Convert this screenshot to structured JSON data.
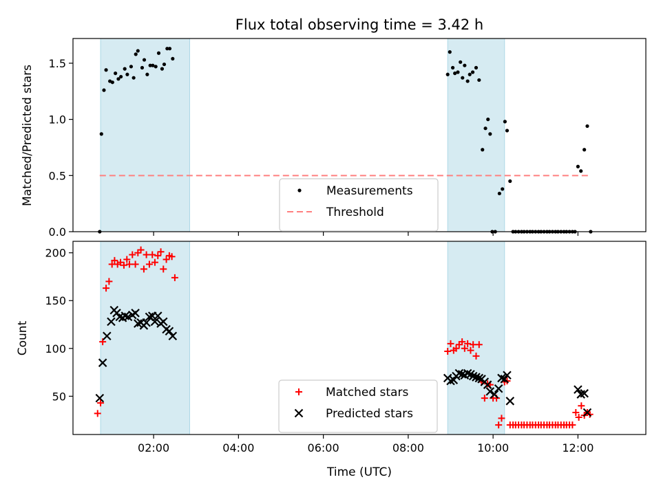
{
  "title": "Flux total observing time = 3.42 h",
  "colors": {
    "shade": "#add8e6",
    "measurement": "#000000",
    "threshold": "#ff7f7f",
    "matched": "#ff0000",
    "predicted": "#000000"
  },
  "chart_data": [
    {
      "type": "scatter",
      "ylabel": "Matched/Predicted stars",
      "xlim_hours": [
        0.1,
        13.6
      ],
      "ylim": [
        0,
        1.72
      ],
      "yticks": [
        {
          "v": 0.0,
          "label": "0.0"
        },
        {
          "v": 0.5,
          "label": "0.5"
        },
        {
          "v": 1.0,
          "label": "1.0"
        },
        {
          "v": 1.5,
          "label": "1.5"
        }
      ],
      "shaded_ranges_hours": [
        [
          0.75,
          2.85
        ],
        [
          8.93,
          10.27
        ]
      ],
      "legend": {
        "placement": "lower center",
        "entries": [
          "Measurements",
          "Threshold"
        ]
      },
      "series": [
        {
          "name": "Measurements",
          "marker": "dot",
          "points": [
            [
              0.73,
              0.0
            ],
            [
              0.77,
              0.87
            ],
            [
              0.83,
              1.26
            ],
            [
              0.88,
              1.44
            ],
            [
              0.97,
              1.34
            ],
            [
              1.03,
              1.33
            ],
            [
              1.1,
              1.41
            ],
            [
              1.17,
              1.36
            ],
            [
              1.23,
              1.38
            ],
            [
              1.32,
              1.45
            ],
            [
              1.38,
              1.4
            ],
            [
              1.47,
              1.47
            ],
            [
              1.53,
              1.37
            ],
            [
              1.58,
              1.58
            ],
            [
              1.63,
              1.61
            ],
            [
              1.73,
              1.46
            ],
            [
              1.78,
              1.53
            ],
            [
              1.85,
              1.4
            ],
            [
              1.92,
              1.48
            ],
            [
              1.98,
              1.48
            ],
            [
              2.05,
              1.47
            ],
            [
              2.12,
              1.59
            ],
            [
              2.2,
              1.45
            ],
            [
              2.25,
              1.49
            ],
            [
              2.32,
              1.63
            ],
            [
              2.38,
              1.63
            ],
            [
              2.45,
              1.54
            ],
            [
              8.93,
              1.4
            ],
            [
              8.98,
              1.6
            ],
            [
              9.05,
              1.46
            ],
            [
              9.1,
              1.41
            ],
            [
              9.17,
              1.42
            ],
            [
              9.23,
              1.51
            ],
            [
              9.28,
              1.37
            ],
            [
              9.33,
              1.48
            ],
            [
              9.4,
              1.34
            ],
            [
              9.45,
              1.4
            ],
            [
              9.52,
              1.42
            ],
            [
              9.6,
              1.46
            ],
            [
              9.67,
              1.35
            ],
            [
              9.75,
              0.73
            ],
            [
              9.82,
              0.92
            ],
            [
              9.88,
              1.0
            ],
            [
              9.93,
              0.87
            ],
            [
              9.98,
              0.0
            ],
            [
              10.05,
              0.0
            ],
            [
              10.15,
              0.34
            ],
            [
              10.22,
              0.38
            ],
            [
              10.28,
              0.98
            ],
            [
              10.33,
              0.9
            ],
            [
              10.4,
              0.45
            ],
            [
              10.47,
              0.0
            ],
            [
              10.53,
              0.0
            ],
            [
              10.6,
              0.0
            ],
            [
              10.67,
              0.0
            ],
            [
              10.73,
              0.0
            ],
            [
              10.8,
              0.0
            ],
            [
              10.87,
              0.0
            ],
            [
              10.93,
              0.0
            ],
            [
              11.0,
              0.0
            ],
            [
              11.07,
              0.0
            ],
            [
              11.13,
              0.0
            ],
            [
              11.2,
              0.0
            ],
            [
              11.27,
              0.0
            ],
            [
              11.33,
              0.0
            ],
            [
              11.4,
              0.0
            ],
            [
              11.47,
              0.0
            ],
            [
              11.53,
              0.0
            ],
            [
              11.6,
              0.0
            ],
            [
              11.67,
              0.0
            ],
            [
              11.73,
              0.0
            ],
            [
              11.8,
              0.0
            ],
            [
              11.87,
              0.0
            ],
            [
              11.93,
              0.0
            ],
            [
              12.0,
              0.58
            ],
            [
              12.07,
              0.54
            ],
            [
              12.15,
              0.73
            ],
            [
              12.22,
              0.94
            ],
            [
              12.3,
              0.0
            ]
          ]
        },
        {
          "name": "Threshold",
          "line": "dashed",
          "x_range_hours": [
            0.73,
            12.3
          ],
          "y": 0.5
        }
      ]
    },
    {
      "type": "scatter",
      "xlabel": "Time (UTC)",
      "ylabel": "Count",
      "xlim_hours": [
        0.1,
        13.6
      ],
      "ylim": [
        10,
        212
      ],
      "yticks": [
        {
          "v": 50,
          "label": "50"
        },
        {
          "v": 100,
          "label": "100"
        },
        {
          "v": 150,
          "label": "150"
        },
        {
          "v": 200,
          "label": "200"
        }
      ],
      "xticks": [
        {
          "v": 2,
          "label": "02:00"
        },
        {
          "v": 4,
          "label": "04:00"
        },
        {
          "v": 6,
          "label": "06:00"
        },
        {
          "v": 8,
          "label": "08:00"
        },
        {
          "v": 10,
          "label": "10:00"
        },
        {
          "v": 12,
          "label": "12:00"
        }
      ],
      "shaded_ranges_hours": [
        [
          0.75,
          2.85
        ],
        [
          8.93,
          10.27
        ]
      ],
      "legend": {
        "placement": "lower center",
        "entries": [
          "Matched stars",
          "Predicted stars"
        ]
      },
      "series": [
        {
          "name": "Matched stars",
          "marker": "plus",
          "points": [
            [
              0.68,
              32
            ],
            [
              0.75,
              43
            ],
            [
              0.8,
              107
            ],
            [
              0.88,
              163
            ],
            [
              0.95,
              170
            ],
            [
              1.02,
              188
            ],
            [
              1.08,
              192
            ],
            [
              1.15,
              188
            ],
            [
              1.22,
              190
            ],
            [
              1.3,
              187
            ],
            [
              1.37,
              193
            ],
            [
              1.43,
              188
            ],
            [
              1.5,
              198
            ],
            [
              1.57,
              188
            ],
            [
              1.63,
              200
            ],
            [
              1.7,
              203
            ],
            [
              1.77,
              183
            ],
            [
              1.83,
              198
            ],
            [
              1.9,
              188
            ],
            [
              1.97,
              198
            ],
            [
              2.03,
              190
            ],
            [
              2.1,
              197
            ],
            [
              2.17,
              201
            ],
            [
              2.23,
              183
            ],
            [
              2.3,
              193
            ],
            [
              2.37,
              197
            ],
            [
              2.43,
              196
            ],
            [
              2.5,
              174
            ],
            [
              8.93,
              97
            ],
            [
              9.0,
              105
            ],
            [
              9.07,
              98
            ],
            [
              9.13,
              100
            ],
            [
              9.2,
              104
            ],
            [
              9.27,
              107
            ],
            [
              9.33,
              100
            ],
            [
              9.4,
              105
            ],
            [
              9.47,
              98
            ],
            [
              9.53,
              104
            ],
            [
              9.6,
              92
            ],
            [
              9.67,
              104
            ],
            [
              9.73,
              65
            ],
            [
              9.8,
              48
            ],
            [
              9.87,
              63
            ],
            [
              9.93,
              62
            ],
            [
              10.0,
              48
            ],
            [
              10.08,
              48
            ],
            [
              10.13,
              20
            ],
            [
              10.2,
              27
            ],
            [
              10.27,
              65
            ],
            [
              10.33,
              66
            ],
            [
              10.4,
              20
            ],
            [
              10.47,
              20
            ],
            [
              10.53,
              20
            ],
            [
              10.6,
              20
            ],
            [
              10.67,
              20
            ],
            [
              10.73,
              20
            ],
            [
              10.8,
              20
            ],
            [
              10.87,
              20
            ],
            [
              10.93,
              20
            ],
            [
              11.0,
              20
            ],
            [
              11.07,
              20
            ],
            [
              11.13,
              20
            ],
            [
              11.2,
              20
            ],
            [
              11.27,
              20
            ],
            [
              11.33,
              20
            ],
            [
              11.4,
              20
            ],
            [
              11.47,
              20
            ],
            [
              11.53,
              20
            ],
            [
              11.6,
              20
            ],
            [
              11.67,
              20
            ],
            [
              11.73,
              20
            ],
            [
              11.8,
              20
            ],
            [
              11.87,
              20
            ],
            [
              11.95,
              33
            ],
            [
              12.02,
              28
            ],
            [
              12.08,
              40
            ],
            [
              12.15,
              30
            ],
            [
              12.22,
              33
            ],
            [
              12.28,
              31
            ]
          ]
        },
        {
          "name": "Predicted stars",
          "marker": "x",
          "points": [
            [
              0.73,
              48
            ],
            [
              0.8,
              85
            ],
            [
              0.9,
              113
            ],
            [
              1.0,
              128
            ],
            [
              1.07,
              140
            ],
            [
              1.13,
              137
            ],
            [
              1.2,
              133
            ],
            [
              1.27,
              132
            ],
            [
              1.33,
              134
            ],
            [
              1.4,
              133
            ],
            [
              1.5,
              135
            ],
            [
              1.57,
              137
            ],
            [
              1.63,
              126
            ],
            [
              1.7,
              127
            ],
            [
              1.77,
              124
            ],
            [
              1.83,
              127
            ],
            [
              1.9,
              133
            ],
            [
              1.97,
              134
            ],
            [
              2.03,
              128
            ],
            [
              2.1,
              134
            ],
            [
              2.17,
              126
            ],
            [
              2.23,
              128
            ],
            [
              2.3,
              120
            ],
            [
              2.37,
              118
            ],
            [
              2.45,
              113
            ],
            [
              8.93,
              69
            ],
            [
              9.0,
              66
            ],
            [
              9.07,
              67
            ],
            [
              9.13,
              71
            ],
            [
              9.2,
              74
            ],
            [
              9.27,
              73
            ],
            [
              9.33,
              72
            ],
            [
              9.4,
              74
            ],
            [
              9.47,
              73
            ],
            [
              9.53,
              71
            ],
            [
              9.6,
              70
            ],
            [
              9.67,
              69
            ],
            [
              9.73,
              68
            ],
            [
              9.8,
              65
            ],
            [
              9.87,
              62
            ],
            [
              9.93,
              55
            ],
            [
              10.03,
              52
            ],
            [
              10.13,
              58
            ],
            [
              10.2,
              69
            ],
            [
              10.27,
              68
            ],
            [
              10.33,
              72
            ],
            [
              10.4,
              45
            ],
            [
              12.0,
              57
            ],
            [
              12.07,
              52
            ],
            [
              12.15,
              53
            ],
            [
              12.22,
              33
            ]
          ]
        }
      ]
    }
  ]
}
